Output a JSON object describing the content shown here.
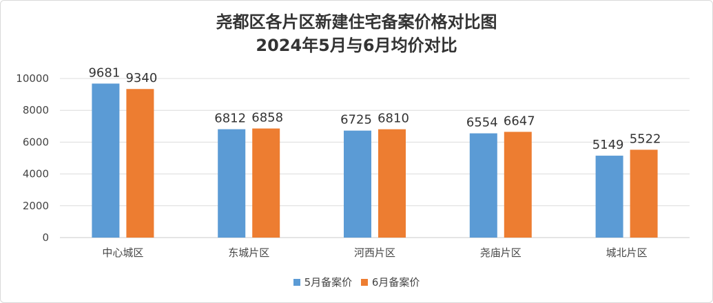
{
  "chart_data": {
    "type": "bar",
    "title": "尧都区各片区新建住宅备案价格对比图",
    "subtitle": "2024年5月与6月均价对比",
    "categories": [
      "中心城区",
      "东城片区",
      "河西片区",
      "尧庙片区",
      "城北片区"
    ],
    "series": [
      {
        "name": "5月备案价",
        "color": "#5b9bd5",
        "values": [
          9681,
          6812,
          6725,
          6554,
          5149
        ]
      },
      {
        "name": "6月备案价",
        "color": "#ed7d31",
        "values": [
          9340,
          6858,
          6810,
          6647,
          5522
        ]
      }
    ],
    "ylim": [
      0,
      10000
    ],
    "yticks": [
      0,
      2000,
      4000,
      6000,
      8000,
      10000
    ],
    "grid": true,
    "legend_position": "bottom"
  }
}
